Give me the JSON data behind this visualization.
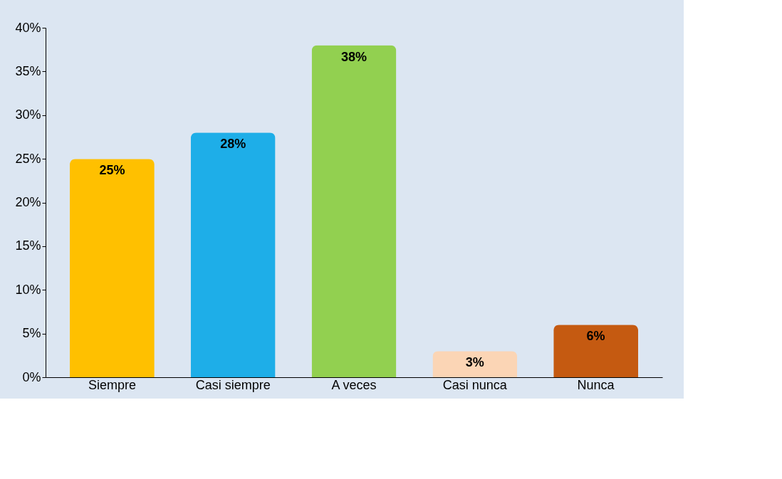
{
  "chart_data": {
    "type": "bar",
    "categories": [
      "Siempre",
      "Casi siempre",
      "A veces",
      "Casi nunca",
      "Nunca"
    ],
    "values": [
      25,
      28,
      38,
      3,
      6
    ],
    "value_labels": [
      "25%",
      "28%",
      "38%",
      "3%",
      "6%"
    ],
    "colors": [
      "#ffc000",
      "#1eaee8",
      "#92d050",
      "#fbd5b5",
      "#c55a11"
    ],
    "ylim": [
      0,
      40
    ],
    "yticks": [
      {
        "value": 0,
        "label": "0%"
      },
      {
        "value": 5,
        "label": "5%"
      },
      {
        "value": 10,
        "label": "10%"
      },
      {
        "value": 15,
        "label": "15%"
      },
      {
        "value": 20,
        "label": "20%"
      },
      {
        "value": 25,
        "label": "25%"
      },
      {
        "value": 30,
        "label": "30%"
      },
      {
        "value": 35,
        "label": "35%"
      },
      {
        "value": 40,
        "label": "40%"
      }
    ],
    "grid": false
  }
}
